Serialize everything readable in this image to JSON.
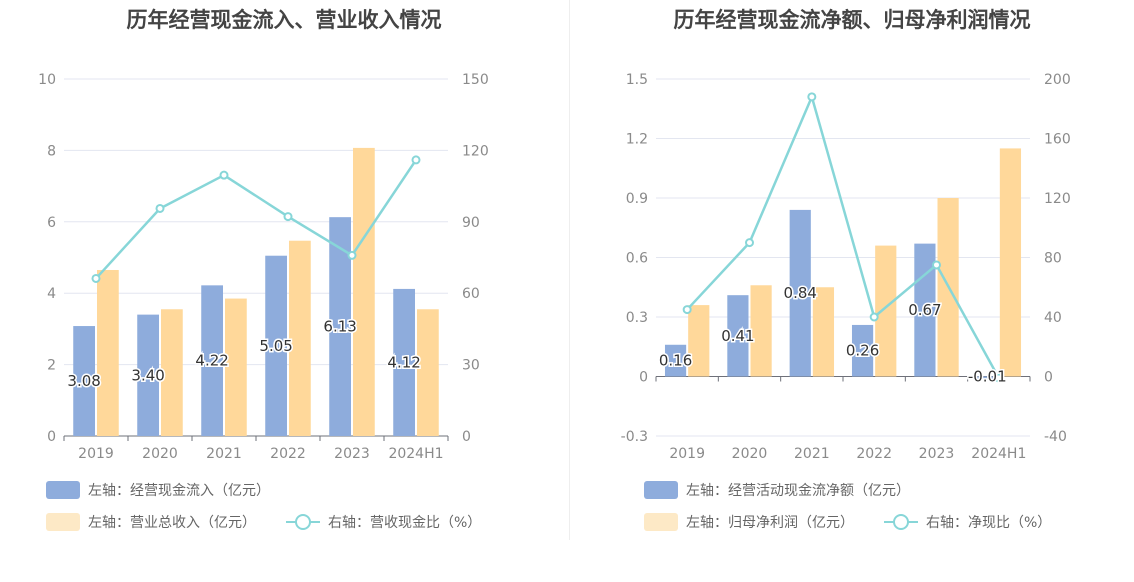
{
  "colors": {
    "bar1": "#8eacdc",
    "bar2": "#ffd89a",
    "bar2_legend": "#fde9c6",
    "line": "#87d6d8",
    "grid": "#e3e6f0",
    "axis_text": "#8a8a8a"
  },
  "chart_data": [
    {
      "type": "bar",
      "title": "历年经营现金流入、营业收入情况",
      "categories": [
        "2019",
        "2020",
        "2021",
        "2022",
        "2023",
        "2024H1"
      ],
      "y_left": {
        "min": 0,
        "max": 10,
        "ticks": [
          0,
          2,
          4,
          6,
          8,
          10
        ]
      },
      "y_right": {
        "min": 0,
        "max": 150,
        "ticks": [
          0,
          30,
          60,
          90,
          120,
          150
        ]
      },
      "series": [
        {
          "name": "左轴：经营现金流入（亿元）",
          "type": "bar",
          "axis": "left",
          "values": [
            3.08,
            3.4,
            4.22,
            5.05,
            6.13,
            4.12
          ],
          "labels": [
            "3.08",
            "3.40",
            "4.22",
            "5.05",
            "6.13",
            "4.12"
          ]
        },
        {
          "name": "左轴：营业总收入（亿元）",
          "type": "bar",
          "axis": "left",
          "values": [
            4.65,
            3.55,
            3.85,
            5.47,
            8.07,
            3.55
          ]
        },
        {
          "name": "右轴：营收现金比（%）",
          "type": "line",
          "axis": "right",
          "values": [
            66.2,
            95.6,
            109.6,
            92.2,
            75.9,
            116.0
          ]
        }
      ]
    },
    {
      "type": "bar",
      "title": "历年经营现金流净额、归母净利润情况",
      "categories": [
        "2019",
        "2020",
        "2021",
        "2022",
        "2023",
        "2024H1"
      ],
      "y_left": {
        "min": -0.3,
        "max": 1.5,
        "ticks": [
          -0.3,
          0,
          0.3,
          0.6,
          0.9,
          1.2,
          1.5
        ]
      },
      "y_right": {
        "min": -40,
        "max": 200,
        "ticks": [
          -40,
          0,
          40,
          80,
          120,
          160,
          200
        ]
      },
      "series": [
        {
          "name": "左轴：经营活动现金流净额（亿元）",
          "type": "bar",
          "axis": "left",
          "values": [
            0.16,
            0.41,
            0.84,
            0.26,
            0.67,
            -0.01
          ],
          "labels": [
            "0.16",
            "0.41",
            "0.84",
            "0.26",
            "0.67",
            "-0.01"
          ]
        },
        {
          "name": "左轴：归母净利润（亿元）",
          "type": "bar",
          "axis": "left",
          "values": [
            0.36,
            0.46,
            0.45,
            0.66,
            0.9,
            1.15
          ]
        },
        {
          "name": "右轴：净现比（%）",
          "type": "line",
          "axis": "right",
          "values": [
            45.0,
            90.0,
            188.0,
            40.0,
            75.0,
            -1.0
          ]
        }
      ]
    }
  ]
}
